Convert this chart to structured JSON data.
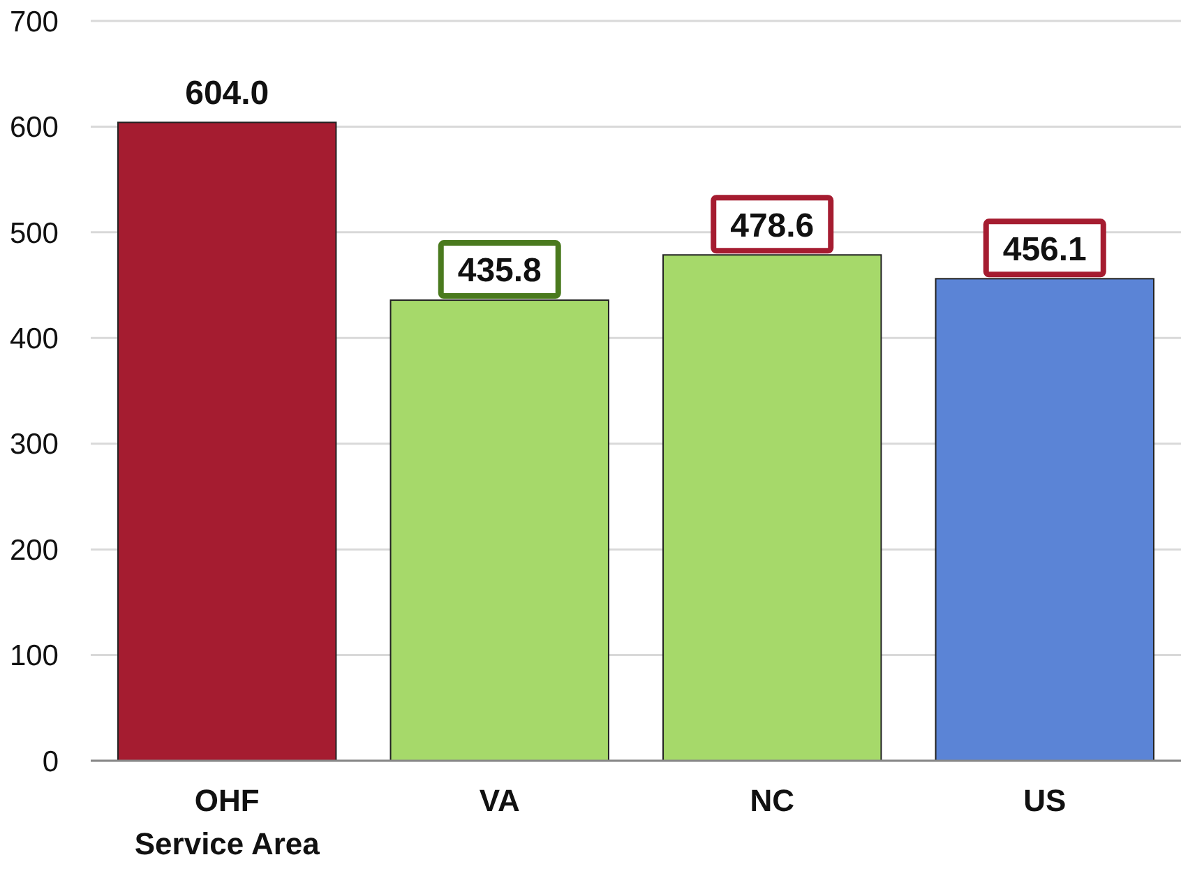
{
  "chart_data": {
    "type": "bar",
    "categories": [
      "OHF\nService Area",
      "VA",
      "NC",
      "US"
    ],
    "values": [
      604.0,
      435.8,
      478.6,
      456.1
    ],
    "colors": [
      "#a51c30",
      "#a6d96a",
      "#a6d96a",
      "#5b84d6"
    ],
    "value_labels": [
      "604.0",
      "435.8",
      "478.6",
      "456.1"
    ],
    "ylim": [
      0,
      700
    ],
    "yticks": [
      0,
      100,
      200,
      300,
      400,
      500,
      600,
      700
    ],
    "grid": "y"
  }
}
